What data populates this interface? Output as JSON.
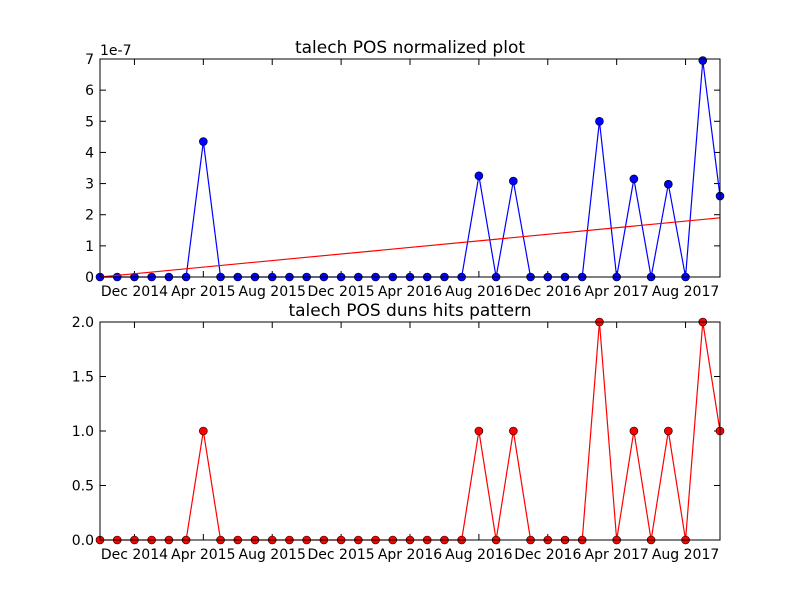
{
  "chart_data": [
    {
      "type": "line",
      "title": "talech POS normalized plot",
      "offset_label": "1e-7",
      "x": [
        "2014-10",
        "2014-11",
        "2014-12",
        "2015-01",
        "2015-02",
        "2015-03",
        "2015-04",
        "2015-05",
        "2015-06",
        "2015-07",
        "2015-08",
        "2015-09",
        "2015-10",
        "2015-11",
        "2015-12",
        "2016-01",
        "2016-02",
        "2016-03",
        "2016-04",
        "2016-05",
        "2016-06",
        "2016-07",
        "2016-08",
        "2016-09",
        "2016-10",
        "2016-11",
        "2016-12",
        "2017-01",
        "2017-02",
        "2017-03",
        "2017-04",
        "2017-05",
        "2017-06",
        "2017-07",
        "2017-08",
        "2017-09",
        "2017-10"
      ],
      "series": [
        {
          "color": "#0000ff",
          "marker": true,
          "values": [
            0,
            0,
            0,
            0,
            0,
            0,
            4.35,
            0,
            0,
            0,
            0,
            0,
            0,
            0,
            0,
            0,
            0,
            0,
            0,
            0,
            0,
            0,
            3.25,
            0,
            3.08,
            0,
            0,
            0,
            0,
            5.0,
            0,
            3.15,
            0,
            2.98,
            0,
            6.95,
            2.6
          ]
        },
        {
          "color": "#ff0000",
          "marker": false,
          "x": [
            "2014-10",
            "2017-10"
          ],
          "values": [
            0,
            1.9
          ]
        }
      ],
      "xlim": [
        "2014-10",
        "2017-10"
      ],
      "xticks": [
        {
          "value": "2014-12",
          "label": "Dec 2014"
        },
        {
          "value": "2015-04",
          "label": "Apr 2015"
        },
        {
          "value": "2015-08",
          "label": "Aug 2015"
        },
        {
          "value": "2015-12",
          "label": "Dec 2015"
        },
        {
          "value": "2016-04",
          "label": "Apr 2016"
        },
        {
          "value": "2016-08",
          "label": "Aug 2016"
        },
        {
          "value": "2016-12",
          "label": "Dec 2016"
        },
        {
          "value": "2017-04",
          "label": "Apr 2017"
        },
        {
          "value": "2017-08",
          "label": "Aug 2017"
        }
      ],
      "ylim": [
        0,
        7
      ],
      "yticks": [
        0,
        1,
        2,
        3,
        4,
        5,
        6,
        7
      ]
    },
    {
      "type": "line",
      "title": "talech POS duns hits pattern",
      "x": [
        "2014-10",
        "2014-11",
        "2014-12",
        "2015-01",
        "2015-02",
        "2015-03",
        "2015-04",
        "2015-05",
        "2015-06",
        "2015-07",
        "2015-08",
        "2015-09",
        "2015-10",
        "2015-11",
        "2015-12",
        "2016-01",
        "2016-02",
        "2016-03",
        "2016-04",
        "2016-05",
        "2016-06",
        "2016-07",
        "2016-08",
        "2016-09",
        "2016-10",
        "2016-11",
        "2016-12",
        "2017-01",
        "2017-02",
        "2017-03",
        "2017-04",
        "2017-05",
        "2017-06",
        "2017-07",
        "2017-08",
        "2017-09",
        "2017-10"
      ],
      "series": [
        {
          "color": "#ff0000",
          "marker": true,
          "values": [
            0,
            0,
            0,
            0,
            0,
            0,
            1,
            0,
            0,
            0,
            0,
            0,
            0,
            0,
            0,
            0,
            0,
            0,
            0,
            0,
            0,
            0,
            1,
            0,
            1,
            0,
            0,
            0,
            0,
            2,
            0,
            1,
            0,
            1,
            0,
            2,
            1
          ]
        }
      ],
      "xlim": [
        "2014-10",
        "2017-10"
      ],
      "xticks": [
        {
          "value": "2014-12",
          "label": "Dec 2014"
        },
        {
          "value": "2015-04",
          "label": "Apr 2015"
        },
        {
          "value": "2015-08",
          "label": "Aug 2015"
        },
        {
          "value": "2015-12",
          "label": "Dec 2015"
        },
        {
          "value": "2016-04",
          "label": "Apr 2016"
        },
        {
          "value": "2016-08",
          "label": "Aug 2016"
        },
        {
          "value": "2016-12",
          "label": "Dec 2016"
        },
        {
          "value": "2017-04",
          "label": "Apr 2017"
        },
        {
          "value": "2017-08",
          "label": "Aug 2017"
        }
      ],
      "ylim": [
        0,
        2
      ],
      "yticks": [
        {
          "value": 0,
          "label": "0.0"
        },
        {
          "value": 0.5,
          "label": "0.5"
        },
        {
          "value": 1,
          "label": "1.0"
        },
        {
          "value": 1.5,
          "label": "1.5"
        },
        {
          "value": 2,
          "label": "2.0"
        }
      ]
    }
  ]
}
